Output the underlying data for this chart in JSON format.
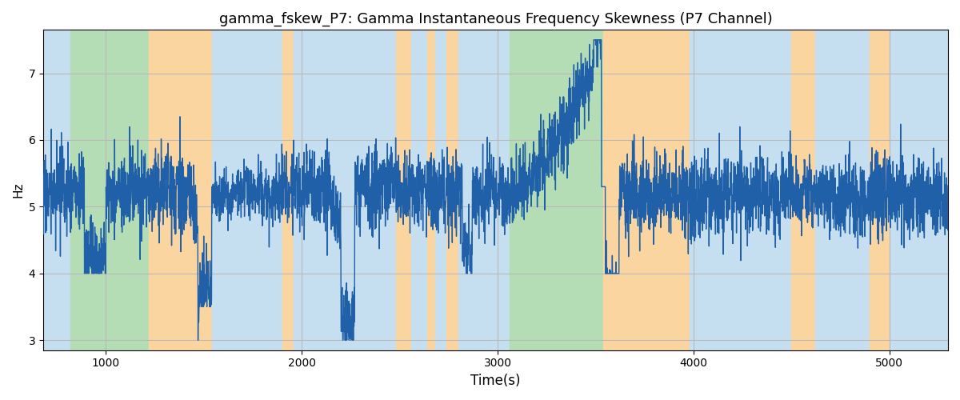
{
  "title": "gamma_fskew_P7: Gamma Instantaneous Frequency Skewness (P7 Channel)",
  "xlabel": "Time(s)",
  "ylabel": "Hz",
  "xlim": [
    680,
    5300
  ],
  "ylim": [
    2.85,
    7.65
  ],
  "yticks": [
    3,
    4,
    5,
    6,
    7
  ],
  "xticks": [
    1000,
    2000,
    3000,
    4000,
    5000
  ],
  "bg_segments": [
    {
      "xstart": 680,
      "xend": 820,
      "color": "#c5dff0"
    },
    {
      "xstart": 820,
      "xend": 1220,
      "color": "#b5ddb5"
    },
    {
      "xstart": 1220,
      "xend": 1540,
      "color": "#fad5a0"
    },
    {
      "xstart": 1540,
      "xend": 1900,
      "color": "#c5dff0"
    },
    {
      "xstart": 1900,
      "xend": 1960,
      "color": "#fad5a0"
    },
    {
      "xstart": 1960,
      "xend": 2480,
      "color": "#c5dff0"
    },
    {
      "xstart": 2480,
      "xend": 2560,
      "color": "#fad5a0"
    },
    {
      "xstart": 2560,
      "xend": 2640,
      "color": "#c5dff0"
    },
    {
      "xstart": 2640,
      "xend": 2680,
      "color": "#fad5a0"
    },
    {
      "xstart": 2680,
      "xend": 2740,
      "color": "#c5dff0"
    },
    {
      "xstart": 2740,
      "xend": 2800,
      "color": "#fad5a0"
    },
    {
      "xstart": 2800,
      "xend": 3060,
      "color": "#c5dff0"
    },
    {
      "xstart": 3060,
      "xend": 3540,
      "color": "#b5ddb5"
    },
    {
      "xstart": 3540,
      "xend": 3980,
      "color": "#fad5a0"
    },
    {
      "xstart": 3980,
      "xend": 4500,
      "color": "#c5dff0"
    },
    {
      "xstart": 4500,
      "xend": 4620,
      "color": "#fad5a0"
    },
    {
      "xstart": 4620,
      "xend": 4900,
      "color": "#c5dff0"
    },
    {
      "xstart": 4900,
      "xend": 5000,
      "color": "#fad5a0"
    },
    {
      "xstart": 5000,
      "xend": 5300,
      "color": "#c5dff0"
    }
  ],
  "line_color": "#2060a8",
  "line_width": 1.0,
  "grid_color": "#b8b8b8",
  "title_fontsize": 13,
  "seed": 17,
  "n_points": 4620,
  "x_start": 680,
  "x_end": 5300,
  "base_mean": 5.2,
  "noise_std": 0.42
}
